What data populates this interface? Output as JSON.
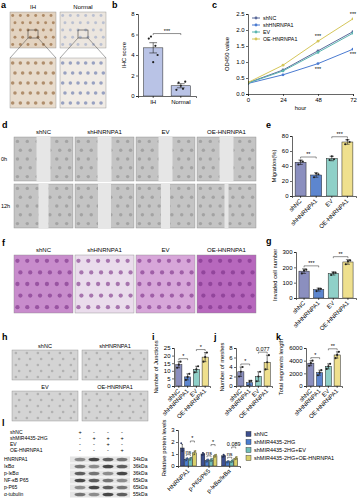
{
  "panel_labels": [
    "a",
    "b",
    "c",
    "d",
    "e",
    "f",
    "g",
    "h",
    "i",
    "j",
    "k",
    "l"
  ],
  "figure_a": {
    "labels": [
      "IH",
      "Normal"
    ]
  },
  "figure_d": {
    "columns": [
      "shNC",
      "shHNRNPA1",
      "EV",
      "OE-HNRNPA1"
    ],
    "rows": [
      "0h",
      "12h"
    ]
  },
  "figure_f": {
    "columns": [
      "shNC",
      "shHNRNPA1",
      "EV",
      "OE-HNRNPA1"
    ]
  },
  "figure_h": {
    "labels": [
      "shNC",
      "shHNRNPA1",
      "EV",
      "OE-HNRNPA1"
    ]
  },
  "blot": {
    "conditions": [
      {
        "name": "shNC",
        "signs": [
          "+",
          "-",
          "-",
          "-"
        ]
      },
      {
        "name": "shMIR4435-2HG",
        "signs": [
          "-",
          "+",
          "+",
          "+"
        ]
      },
      {
        "name": "EV",
        "signs": [
          "-",
          "-",
          "+",
          "-"
        ]
      },
      {
        "name": "OE-HNRNPA1",
        "signs": [
          "-",
          "-",
          "-",
          "+"
        ]
      }
    ],
    "rows": [
      {
        "name": "HNRNPA1",
        "kda": "34kDa"
      },
      {
        "name": "IκBα",
        "kda": "36kDa"
      },
      {
        "name": "p-IκBα",
        "kda": "36kDa"
      },
      {
        "name": "NF-κB P65",
        "kda": "65kDa"
      },
      {
        "name": "p-P65",
        "kda": "65kDa"
      },
      {
        "name": "α-tubulin",
        "kda": "55kDa"
      }
    ]
  },
  "chart_data": [
    {
      "type": "bar",
      "y_label": "IHC score",
      "categories": [
        "IH",
        "Normal"
      ],
      "values": [
        4.7,
        1.0
      ],
      "errors": [
        0.5,
        0.2
      ],
      "points": [
        [
          5.6,
          5.8,
          3.3,
          4.9,
          4.0
        ],
        [
          0.6,
          1.3,
          1.0,
          0.7,
          1.4
        ]
      ],
      "colors": [
        "#b9c3e6",
        "#b9c3e6"
      ],
      "ylim": [
        0,
        8
      ],
      "yticks": [
        0,
        2,
        4,
        6,
        8
      ],
      "annotations": [
        {
          "text": "***",
          "between": [
            0,
            1
          ]
        }
      ]
    },
    {
      "type": "line",
      "x_label": "hour",
      "y_label": "OD450 value",
      "x": [
        0,
        24,
        48,
        72
      ],
      "series": [
        {
          "name": "shNC",
          "color": "#5b6a9a",
          "values": [
            0.35,
            0.75,
            1.35,
            1.95
          ]
        },
        {
          "name": "shHNRNPA1",
          "color": "#4b7bd1",
          "values": [
            0.33,
            0.6,
            0.95,
            1.4
          ]
        },
        {
          "name": "EV",
          "color": "#5bb5b0",
          "values": [
            0.34,
            0.72,
            1.3,
            1.9
          ]
        },
        {
          "name": "OE-HNRNPA1",
          "color": "#d5c65a",
          "values": [
            0.36,
            0.9,
            1.65,
            2.35
          ]
        }
      ],
      "xlim": [
        0,
        72
      ],
      "xticks": [
        0,
        24,
        48,
        72
      ],
      "ylim": [
        0,
        2.5
      ],
      "yticks": [
        {
          "value": 0,
          "label": "0.0"
        },
        0.5,
        {
          "value": 1,
          "label": "1.0"
        },
        1.5,
        {
          "value": 2,
          "label": "2.0"
        },
        2.5
      ],
      "marker": "circle",
      "legend": "upper left",
      "annotations": [
        {
          "text": "***",
          "x": 48,
          "series": 3
        },
        {
          "text": "***",
          "x": 72,
          "series": 3
        },
        {
          "text": "***",
          "x": 48,
          "series": 1
        },
        {
          "text": "***",
          "x": 72,
          "series": 1
        }
      ]
    },
    {
      "type": "bar",
      "y_label": "Migration(%)",
      "categories": [
        "shNC",
        "shHNRNPA1",
        "EV",
        "OE-HNRNPA1"
      ],
      "values": [
        45,
        28,
        50,
        72
      ],
      "errors": [
        3,
        3,
        3,
        3
      ],
      "points": [
        [
          42,
          47,
          46
        ],
        [
          25,
          30,
          29
        ],
        [
          48,
          53,
          49
        ],
        [
          69,
          75,
          72
        ]
      ],
      "colors": [
        "#8b8fbf",
        "#5d86cf",
        "#8fd0c8",
        "#efe08e"
      ],
      "ylim": [
        0,
        80
      ],
      "yticks": [
        0,
        20,
        40,
        60,
        80
      ],
      "annotations": [
        {
          "text": "**",
          "between": [
            0,
            1
          ]
        },
        {
          "text": "***",
          "between": [
            2,
            3
          ]
        }
      ]
    },
    {
      "type": "bar",
      "y_label": "Invaded cell number",
      "categories": [
        "shNC",
        "shHNRNPA1",
        "EV",
        "OE-HNRNPA1"
      ],
      "values": [
        175,
        55,
        160,
        235
      ],
      "errors": [
        15,
        10,
        10,
        15
      ],
      "points": [
        [
          160,
          180,
          185
        ],
        [
          45,
          60,
          60
        ],
        [
          150,
          165,
          165
        ],
        [
          220,
          240,
          245
        ]
      ],
      "colors": [
        "#8b8fbf",
        "#5d86cf",
        "#8fd0c8",
        "#efe08e"
      ],
      "ylim": [
        0,
        300
      ],
      "yticks": [
        0,
        100,
        200,
        300
      ],
      "annotations": [
        {
          "text": "***",
          "between": [
            0,
            1
          ]
        },
        {
          "text": "**",
          "between": [
            2,
            3
          ]
        }
      ]
    },
    {
      "type": "bar",
      "y_label": "Number of Junctions",
      "categories": [
        "shNC",
        "shHNRNPA1",
        "EV",
        "OE-HNRNPA1"
      ],
      "values": [
        14,
        6,
        11,
        19
      ],
      "errors": [
        2,
        2,
        2,
        3
      ],
      "points": [
        [
          12,
          14,
          16
        ],
        [
          4,
          6,
          8
        ],
        [
          9,
          11,
          13
        ],
        [
          16,
          19,
          22
        ]
      ],
      "colors": [
        "#8b8fbf",
        "#5d86cf",
        "#8fd0c8",
        "#efe08e"
      ],
      "ylim": [
        0,
        25
      ],
      "yticks": [
        0,
        5,
        10,
        15,
        20,
        25
      ],
      "annotations": [
        {
          "text": "*",
          "between": [
            0,
            1
          ]
        },
        {
          "text": "*",
          "between": [
            2,
            3
          ]
        }
      ]
    },
    {
      "type": "bar",
      "y_label": "Number of meshes",
      "categories": [
        "shNC",
        "shHNRNPA1",
        "EV",
        "OE-HNRNPA1"
      ],
      "values": [
        3,
        0.7,
        2,
        5
      ],
      "errors": [
        1,
        0.5,
        1,
        1.5
      ],
      "points": [
        [
          2,
          3,
          4
        ],
        [
          0,
          1,
          1.1
        ],
        [
          1,
          2,
          3
        ],
        [
          3.5,
          5,
          6.5
        ]
      ],
      "colors": [
        "#8b8fbf",
        "#5d86cf",
        "#8fd0c8",
        "#efe08e"
      ],
      "ylim": [
        0,
        8
      ],
      "yticks": [
        0,
        2,
        4,
        6,
        8
      ],
      "annotations": [
        {
          "text": "*",
          "between": [
            0,
            1
          ]
        },
        {
          "text": "0.077",
          "between": [
            2,
            3
          ]
        }
      ]
    },
    {
      "type": "bar",
      "y_label": "Total segments length",
      "categories": [
        "shNC",
        "shHNRNPA1",
        "EV",
        "OE-HNRNPA1"
      ],
      "values": [
        3600,
        2100,
        3100,
        4900
      ],
      "errors": [
        400,
        400,
        400,
        500
      ],
      "points": [
        [
          3200,
          3600,
          4000
        ],
        [
          1700,
          2100,
          2500
        ],
        [
          2700,
          3100,
          3500
        ],
        [
          4400,
          4900,
          5400
        ]
      ],
      "colors": [
        "#8b8fbf",
        "#5d86cf",
        "#8fd0c8",
        "#efe08e"
      ],
      "ylim": [
        0,
        6000
      ],
      "yticks": [
        0,
        2000,
        4000,
        6000
      ],
      "annotations": [
        {
          "text": "*",
          "between": [
            0,
            1
          ]
        },
        {
          "text": "**",
          "between": [
            2,
            3
          ]
        }
      ]
    },
    {
      "type": "bar",
      "y_label": "Relative protein levels",
      "categories": [
        "HNRNPA1",
        "p-P65/P65",
        "p-IκBα/IκBα"
      ],
      "series": [
        {
          "name": "shNC",
          "color": "#3d4f8f",
          "values": [
            1.5,
            1.0,
            0.85
          ],
          "errors": [
            0.3,
            0.1,
            0.1
          ],
          "points": [
            [
              1.9,
              1.3,
              1.3
            ],
            [
              0.9,
              1.1,
              1.0
            ],
            [
              0.75,
              0.95,
              0.85
            ]
          ]
        },
        {
          "name": "shMIR4435-2HG",
          "color": "#4a7ed1",
          "values": [
            0.55,
            0.45,
            0.35
          ],
          "errors": [
            0.1,
            0.1,
            0.08
          ],
          "points": [
            [
              0.45,
              0.55,
              0.65
            ],
            [
              0.35,
              0.45,
              0.55
            ],
            [
              0.3,
              0.35,
              0.4
            ]
          ]
        },
        {
          "name": "shMIR4435-2HG+EV",
          "color": "#6fbfb8",
          "values": [
            0.6,
            0.5,
            0.4
          ],
          "errors": [
            0.1,
            0.1,
            0.08
          ],
          "points": [
            [
              0.5,
              0.6,
              0.7
            ],
            [
              0.4,
              0.5,
              0.6
            ],
            [
              0.32,
              0.4,
              0.48
            ]
          ]
        },
        {
          "name": "shMIR4435-2HG+OE-HNRNPA1",
          "color": "#d8cf6a",
          "values": [
            1.1,
            0.85,
            0.65
          ],
          "errors": [
            0.15,
            0.1,
            0.1
          ],
          "points": [
            [
              0.95,
              1.1,
              1.25
            ],
            [
              0.75,
              0.85,
              0.95
            ],
            [
              0.55,
              0.65,
              0.75
            ]
          ]
        }
      ],
      "ylim": [
        0,
        3
      ],
      "yticks": [
        0,
        1,
        2,
        3
      ],
      "legend": "right",
      "annotations": [
        {
          "text": "ns",
          "category": 0,
          "between": [
            1,
            2
          ]
        },
        {
          "text": "*",
          "category": 0,
          "between": [
            2,
            3
          ]
        },
        {
          "text": "ns",
          "category": 1,
          "between": [
            1,
            2
          ]
        },
        {
          "text": "*",
          "category": 1,
          "between": [
            2,
            3
          ]
        },
        {
          "text": "ns",
          "category": 2,
          "between": [
            1,
            2
          ]
        },
        {
          "text": "0.089",
          "category": 2,
          "between": [
            2,
            3
          ]
        }
      ]
    }
  ]
}
